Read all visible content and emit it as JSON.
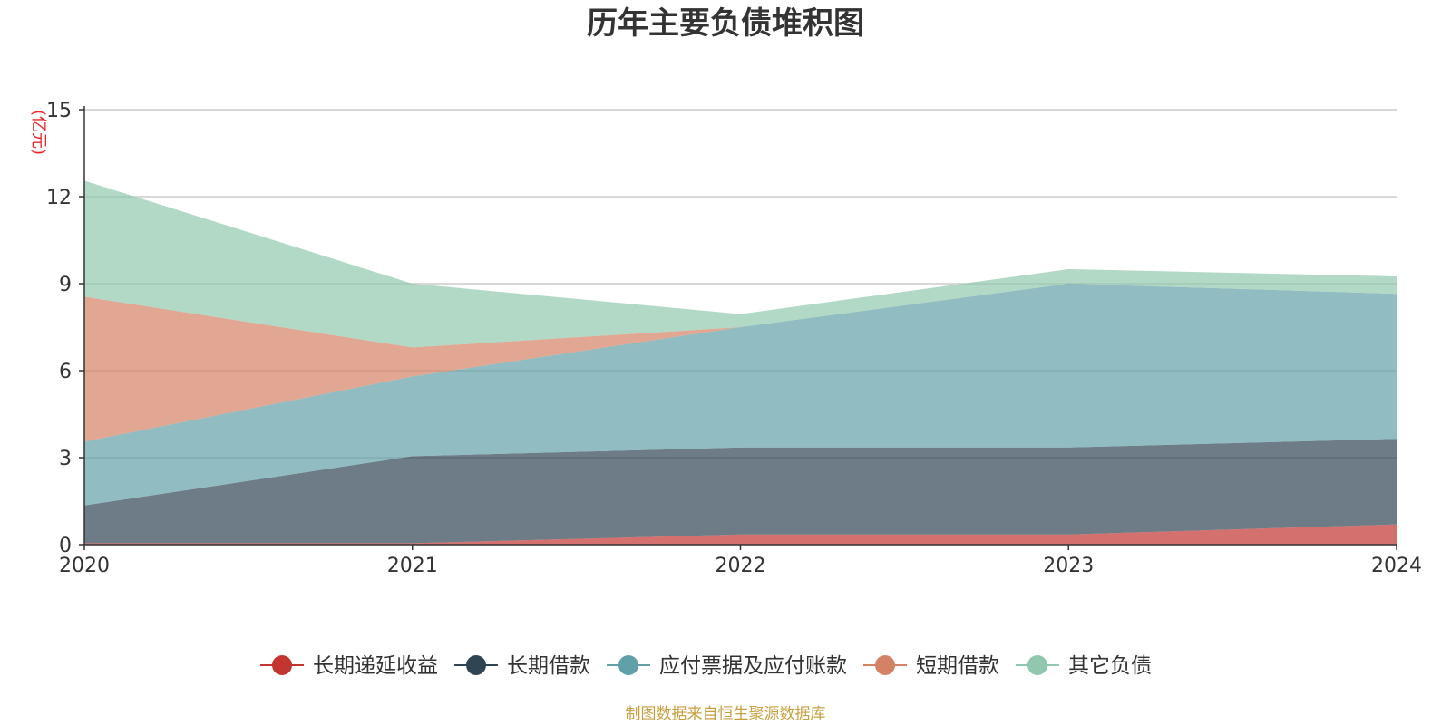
{
  "chart_data": {
    "type": "area",
    "stacked": true,
    "title": "历年主要负债堆积图",
    "unit_label": "(亿元)",
    "source_note": "制图数据来自恒生聚源数据库",
    "x": [
      "2020",
      "2021",
      "2022",
      "2023",
      "2024"
    ],
    "y_ticks": [
      "0",
      "3",
      "6",
      "9",
      "12",
      "15"
    ],
    "ylim": [
      0,
      15
    ],
    "grid": true,
    "legend_position": "bottom",
    "series": [
      {
        "name": "长期递延收益",
        "color": "#c23531",
        "values": [
          0.05,
          0.05,
          0.35,
          0.35,
          0.7
        ]
      },
      {
        "name": "长期借款",
        "color": "#2f4554",
        "values": [
          1.3,
          3.0,
          3.0,
          3.0,
          2.95
        ]
      },
      {
        "name": "应付票据及应付账款",
        "color": "#61a0a8",
        "values": [
          2.2,
          2.75,
          4.15,
          5.65,
          5.0
        ]
      },
      {
        "name": "短期借款",
        "color": "#d48265",
        "values": [
          5.0,
          1.0,
          0.0,
          0.0,
          0.0
        ]
      },
      {
        "name": "其它负债",
        "color": "#91c7ae",
        "values": [
          4.0,
          2.2,
          0.45,
          0.5,
          0.6
        ]
      }
    ]
  }
}
